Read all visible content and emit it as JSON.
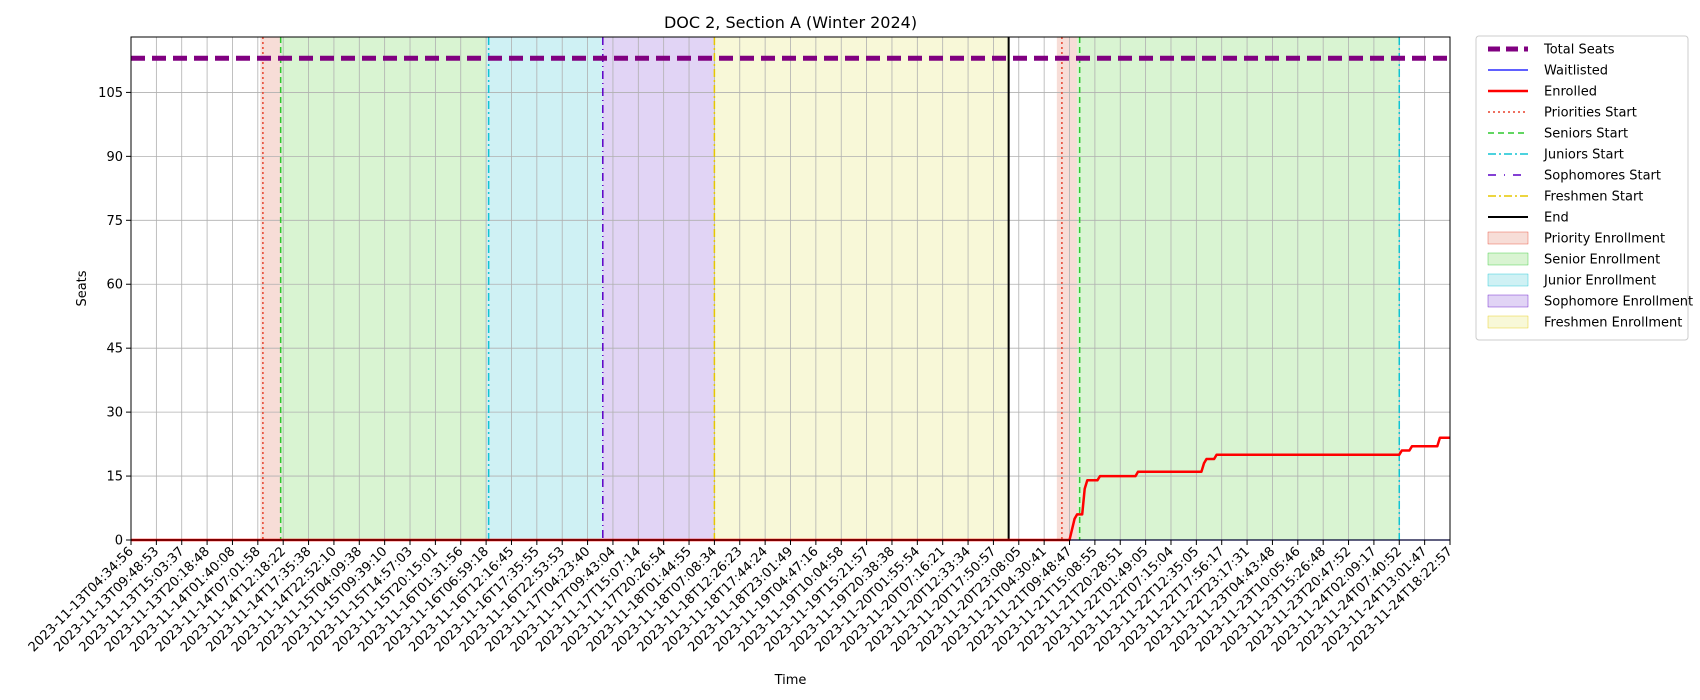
{
  "chart_data": {
    "type": "line",
    "title": "DOC 2, Section A (Winter 2024)",
    "xlabel": "Time",
    "ylabel": "Seats",
    "ylim": [
      0,
      118
    ],
    "yticks": [
      0,
      15,
      30,
      45,
      60,
      75,
      90,
      105
    ],
    "grid": true,
    "legend_position": "outside-right",
    "colors": {
      "total": "#800080",
      "waitlisted": "#0000ff",
      "enrolled": "#ff0000",
      "priorities": "#e8412b",
      "seniors": "#2ec92e",
      "juniors": "#10c4d4",
      "sophomores": "#5c00c6",
      "freshmen": "#e6c700",
      "end": "#000000",
      "priority_fill": "#f7ddd7",
      "senior_fill": "#d9f4d2",
      "junior_fill": "#cff1f4",
      "sophomore_fill": "#e1d4f5",
      "freshmen_fill": "#f8f8d8"
    },
    "x_tick_labels": [
      "2023-11-13T04:34:56",
      "2023-11-13T09:48:53",
      "2023-11-13T15:03:37",
      "2023-11-13T20:18:48",
      "2023-11-14T01:40:08",
      "2023-11-14T07:01:58",
      "2023-11-14T12:18:22",
      "2023-11-14T17:35:38",
      "2023-11-14T22:52:10",
      "2023-11-15T04:09:38",
      "2023-11-15T09:39:10",
      "2023-11-15T14:57:03",
      "2023-11-15T20:15:01",
      "2023-11-16T01:31:56",
      "2023-11-16T06:59:18",
      "2023-11-16T12:16:45",
      "2023-11-16T17:35:55",
      "2023-11-16T22:53:53",
      "2023-11-17T04:23:40",
      "2023-11-17T09:43:04",
      "2023-11-17T15:07:14",
      "2023-11-17T20:26:54",
      "2023-11-18T01:44:55",
      "2023-11-18T07:08:34",
      "2023-11-18T12:26:23",
      "2023-11-18T17:44:24",
      "2023-11-18T23:01:49",
      "2023-11-19T04:47:16",
      "2023-11-19T10:04:58",
      "2023-11-19T15:21:57",
      "2023-11-19T20:38:38",
      "2023-11-20T01:55:54",
      "2023-11-20T07:16:21",
      "2023-11-20T12:33:34",
      "2023-11-20T17:50:57",
      "2023-11-20T23:08:05",
      "2023-11-21T04:30:41",
      "2023-11-21T09:48:47",
      "2023-11-21T15:08:55",
      "2023-11-21T20:28:51",
      "2023-11-22T01:49:05",
      "2023-11-22T07:15:04",
      "2023-11-22T12:35:05",
      "2023-11-22T17:56:17",
      "2023-11-22T23:17:31",
      "2023-11-23T04:43:48",
      "2023-11-23T10:05:46",
      "2023-11-23T15:26:48",
      "2023-11-23T20:47:52",
      "2023-11-24T02:09:17",
      "2023-11-24T07:40:52",
      "2023-11-24T13:01:47",
      "2023-11-24T18:22:57"
    ],
    "x_range_ticks": [
      0,
      52
    ],
    "phases": [
      {
        "name": "Priority Enrollment",
        "key": "priority_fill",
        "x0": 5.1,
        "x1": 5.9
      },
      {
        "name": "Senior Enrollment",
        "key": "senior_fill",
        "x0": 5.9,
        "x1": 14.0
      },
      {
        "name": "Junior Enrollment",
        "key": "junior_fill",
        "x0": 14.0,
        "x1": 18.6
      },
      {
        "name": "Sophomore Enrollment",
        "key": "sophomore_fill",
        "x0": 18.6,
        "x1": 23.0
      },
      {
        "name": "Freshmen Enrollment",
        "key": "freshmen_fill",
        "x0": 23.0,
        "x1": 34.6
      },
      {
        "name": "Priority Enrollment",
        "key": "priority_fill",
        "x0": 36.5,
        "x1": 37.3
      },
      {
        "name": "Senior Enrollment",
        "key": "senior_fill",
        "x0": 37.3,
        "x1": 50.0
      }
    ],
    "vlines": [
      {
        "key": "priorities",
        "x": 5.2,
        "dash": "2,3",
        "width": 1.5
      },
      {
        "key": "seniors",
        "x": 5.9,
        "dash": "6,4",
        "width": 1.5
      },
      {
        "key": "juniors",
        "x": 14.1,
        "dash": "8,3,2,3",
        "width": 1.5
      },
      {
        "key": "sophomores",
        "x": 18.6,
        "dash": "8,4,1,4",
        "width": 1.5
      },
      {
        "key": "freshmen",
        "x": 23.0,
        "dash": "8,3,2,3",
        "width": 1.5
      },
      {
        "key": "end",
        "x": 34.6,
        "dash": "",
        "width": 2
      },
      {
        "key": "priorities",
        "x": 36.7,
        "dash": "2,3",
        "width": 1.5
      },
      {
        "key": "seniors",
        "x": 37.4,
        "dash": "6,4",
        "width": 1.5
      },
      {
        "key": "juniors",
        "x": 50.0,
        "dash": "8,3,2,3",
        "width": 1.5
      }
    ],
    "series": [
      {
        "name": "Total Seats",
        "key": "total",
        "width": 5,
        "dash": "14,7",
        "points": [
          [
            0,
            113
          ],
          [
            52,
            113
          ]
        ]
      },
      {
        "name": "Waitlisted",
        "key": "waitlisted",
        "width": 1.3,
        "dash": "",
        "points": [
          [
            0,
            0
          ],
          [
            52,
            0
          ]
        ]
      },
      {
        "name": "Enrolled",
        "key": "enrolled",
        "width": 2.5,
        "dash": "",
        "points": [
          [
            0,
            0
          ],
          [
            37.0,
            0
          ],
          [
            37.2,
            5
          ],
          [
            37.3,
            6
          ],
          [
            37.5,
            6
          ],
          [
            37.6,
            12
          ],
          [
            37.7,
            14
          ],
          [
            38.1,
            14
          ],
          [
            38.2,
            15
          ],
          [
            39.6,
            15
          ],
          [
            39.7,
            16
          ],
          [
            42.2,
            16
          ],
          [
            42.3,
            18
          ],
          [
            42.4,
            19
          ],
          [
            42.7,
            19
          ],
          [
            42.8,
            20
          ],
          [
            50.0,
            20
          ],
          [
            50.1,
            21
          ],
          [
            50.4,
            21
          ],
          [
            50.5,
            22
          ],
          [
            51.5,
            22
          ],
          [
            51.6,
            24
          ],
          [
            52,
            24
          ]
        ]
      }
    ],
    "legend": [
      {
        "label": "Total Seats",
        "kind": "line",
        "key": "total",
        "width": 5,
        "dash": "12,6"
      },
      {
        "label": "Waitlisted",
        "kind": "line",
        "key": "waitlisted",
        "width": 1.3,
        "dash": ""
      },
      {
        "label": "Enrolled",
        "kind": "line",
        "key": "enrolled",
        "width": 2.5,
        "dash": ""
      },
      {
        "label": "Priorities Start",
        "kind": "line",
        "key": "priorities",
        "width": 1.5,
        "dash": "2,3"
      },
      {
        "label": "Seniors Start",
        "kind": "line",
        "key": "seniors",
        "width": 1.5,
        "dash": "6,4"
      },
      {
        "label": "Juniors Start",
        "kind": "line",
        "key": "juniors",
        "width": 1.5,
        "dash": "8,3,2,3"
      },
      {
        "label": "Sophomores Start",
        "kind": "line",
        "key": "sophomores",
        "width": 1.5,
        "dash": "8,8,1,8"
      },
      {
        "label": "Freshmen Start",
        "kind": "line",
        "key": "freshmen",
        "width": 1.5,
        "dash": "8,3,2,3"
      },
      {
        "label": "End",
        "kind": "line",
        "key": "end",
        "width": 2,
        "dash": ""
      },
      {
        "label": "Priority Enrollment",
        "kind": "patch",
        "key": "priority_fill",
        "edge": "priorities"
      },
      {
        "label": "Senior Enrollment",
        "kind": "patch",
        "key": "senior_fill",
        "edge": "seniors"
      },
      {
        "label": "Junior Enrollment",
        "kind": "patch",
        "key": "junior_fill",
        "edge": "juniors"
      },
      {
        "label": "Sophomore Enrollment",
        "kind": "patch",
        "key": "sophomore_fill",
        "edge": "sophomores"
      },
      {
        "label": "Freshmen Enrollment",
        "kind": "patch",
        "key": "freshmen_fill",
        "edge": "freshmen"
      }
    ]
  }
}
